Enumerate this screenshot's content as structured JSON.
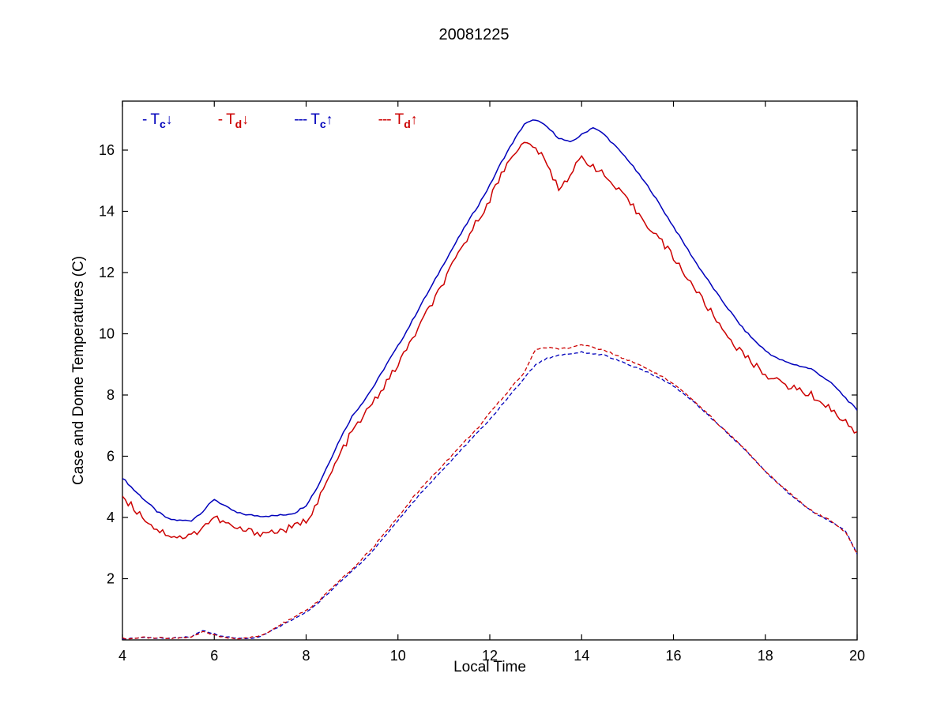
{
  "chart_data": {
    "type": "line",
    "title": "20081225",
    "xlabel": "Local Time",
    "ylabel": "Case and Dome Temperatures (C)",
    "xlim": [
      4,
      20
    ],
    "ylim": [
      0,
      17.6
    ],
    "xticks": [
      4,
      6,
      8,
      10,
      12,
      14,
      16,
      18,
      20
    ],
    "yticks": [
      2,
      4,
      6,
      8,
      10,
      12,
      14,
      16
    ],
    "grid": false,
    "legend_position": "top-left-inside",
    "x": [
      4,
      4.25,
      4.5,
      4.75,
      5,
      5.25,
      5.5,
      5.75,
      6,
      6.25,
      6.5,
      6.75,
      7,
      7.25,
      7.5,
      7.75,
      8,
      8.25,
      8.5,
      8.75,
      9,
      9.25,
      9.5,
      9.75,
      10,
      10.25,
      10.5,
      10.75,
      11,
      11.25,
      11.5,
      11.75,
      12,
      12.25,
      12.5,
      12.75,
      13,
      13.25,
      13.5,
      13.75,
      14,
      14.25,
      14.5,
      14.75,
      15,
      15.25,
      15.5,
      15.75,
      16,
      16.25,
      16.5,
      16.75,
      17,
      17.25,
      17.5,
      17.75,
      18,
      18.25,
      18.5,
      18.75,
      19,
      19.25,
      19.5,
      19.75,
      20
    ],
    "series": [
      {
        "id": "tc-down",
        "name": "Tc down (case temperature, down-looking)",
        "legend_marker": "-",
        "symbol": "T",
        "subscript": "c",
        "arrow": "↓",
        "color": "#0000BB",
        "dashed": false,
        "noise": 0.03,
        "values": [
          5.3,
          4.9,
          4.55,
          4.2,
          3.95,
          3.9,
          3.9,
          4.2,
          4.6,
          4.35,
          4.15,
          4.08,
          4.05,
          4.05,
          4.08,
          4.15,
          4.4,
          5.0,
          5.8,
          6.6,
          7.3,
          7.8,
          8.35,
          9.0,
          9.6,
          10.25,
          10.95,
          11.6,
          12.3,
          12.95,
          13.6,
          14.2,
          14.85,
          15.6,
          16.25,
          16.85,
          17.0,
          16.75,
          16.4,
          16.25,
          16.5,
          16.75,
          16.5,
          16.1,
          15.7,
          15.2,
          14.7,
          14.1,
          13.5,
          12.9,
          12.3,
          11.75,
          11.2,
          10.7,
          10.2,
          9.8,
          9.45,
          9.2,
          9.05,
          8.95,
          8.85,
          8.6,
          8.3,
          7.9,
          7.5
        ]
      },
      {
        "id": "td-down",
        "name": "Td down (dome temperature, down-looking)",
        "legend_marker": "-",
        "symbol": "T",
        "subscript": "d",
        "arrow": "↓",
        "color": "#CC0000",
        "dashed": false,
        "noise": 0.12,
        "values": [
          4.7,
          4.3,
          3.95,
          3.6,
          3.45,
          3.35,
          3.4,
          3.7,
          4.0,
          3.8,
          3.62,
          3.55,
          3.5,
          3.52,
          3.58,
          3.7,
          3.9,
          4.5,
          5.3,
          6.1,
          6.8,
          7.3,
          7.85,
          8.4,
          9.0,
          9.65,
          10.35,
          11.0,
          11.7,
          12.4,
          13.1,
          13.75,
          14.4,
          15.2,
          15.9,
          16.2,
          16.1,
          15.5,
          14.75,
          15.2,
          15.75,
          15.5,
          15.15,
          14.75,
          14.35,
          13.9,
          13.45,
          13.0,
          12.5,
          11.95,
          11.4,
          10.85,
          10.3,
          9.8,
          9.35,
          9.0,
          8.7,
          8.45,
          8.3,
          8.15,
          8.0,
          7.75,
          7.45,
          7.1,
          6.8
        ]
      },
      {
        "id": "tc-up",
        "name": "Tc up (case temperature, up-looking)",
        "legend_marker": "---",
        "symbol": "T",
        "subscript": "c",
        "arrow": "↑",
        "color": "#0000BB",
        "dashed": true,
        "noise": 0.02,
        "values": [
          0.05,
          0.05,
          0.07,
          0.06,
          0.05,
          0.08,
          0.1,
          0.3,
          0.2,
          0.1,
          0.05,
          0.05,
          0.1,
          0.3,
          0.5,
          0.7,
          0.9,
          1.2,
          1.55,
          1.9,
          2.25,
          2.6,
          3.0,
          3.45,
          3.9,
          4.35,
          4.8,
          5.2,
          5.6,
          6.0,
          6.4,
          6.8,
          7.2,
          7.65,
          8.1,
          8.55,
          9.0,
          9.2,
          9.3,
          9.35,
          9.4,
          9.35,
          9.3,
          9.15,
          9.0,
          8.85,
          8.7,
          8.5,
          8.3,
          8.0,
          7.7,
          7.35,
          7.0,
          6.65,
          6.3,
          5.9,
          5.5,
          5.15,
          4.8,
          4.5,
          4.2,
          4.0,
          3.8,
          3.55,
          2.8
        ]
      },
      {
        "id": "td-up",
        "name": "Td up (dome temperature, up-looking)",
        "legend_marker": "---",
        "symbol": "T",
        "subscript": "d",
        "arrow": "↑",
        "color": "#CC0000",
        "dashed": true,
        "noise": 0.03,
        "values": [
          0.05,
          0.06,
          0.08,
          0.06,
          0.05,
          0.07,
          0.1,
          0.25,
          0.15,
          0.08,
          0.05,
          0.06,
          0.12,
          0.32,
          0.55,
          0.75,
          0.95,
          1.25,
          1.6,
          1.95,
          2.3,
          2.7,
          3.1,
          3.55,
          4.0,
          4.5,
          4.95,
          5.35,
          5.75,
          6.15,
          6.55,
          6.95,
          7.4,
          7.85,
          8.3,
          8.75,
          9.5,
          9.55,
          9.5,
          9.55,
          9.65,
          9.55,
          9.45,
          9.3,
          9.15,
          9.0,
          8.8,
          8.6,
          8.35,
          8.05,
          7.72,
          7.37,
          7.02,
          6.67,
          6.32,
          5.92,
          5.52,
          5.17,
          4.82,
          4.52,
          4.22,
          4.02,
          3.82,
          3.52,
          2.82
        ]
      }
    ]
  }
}
